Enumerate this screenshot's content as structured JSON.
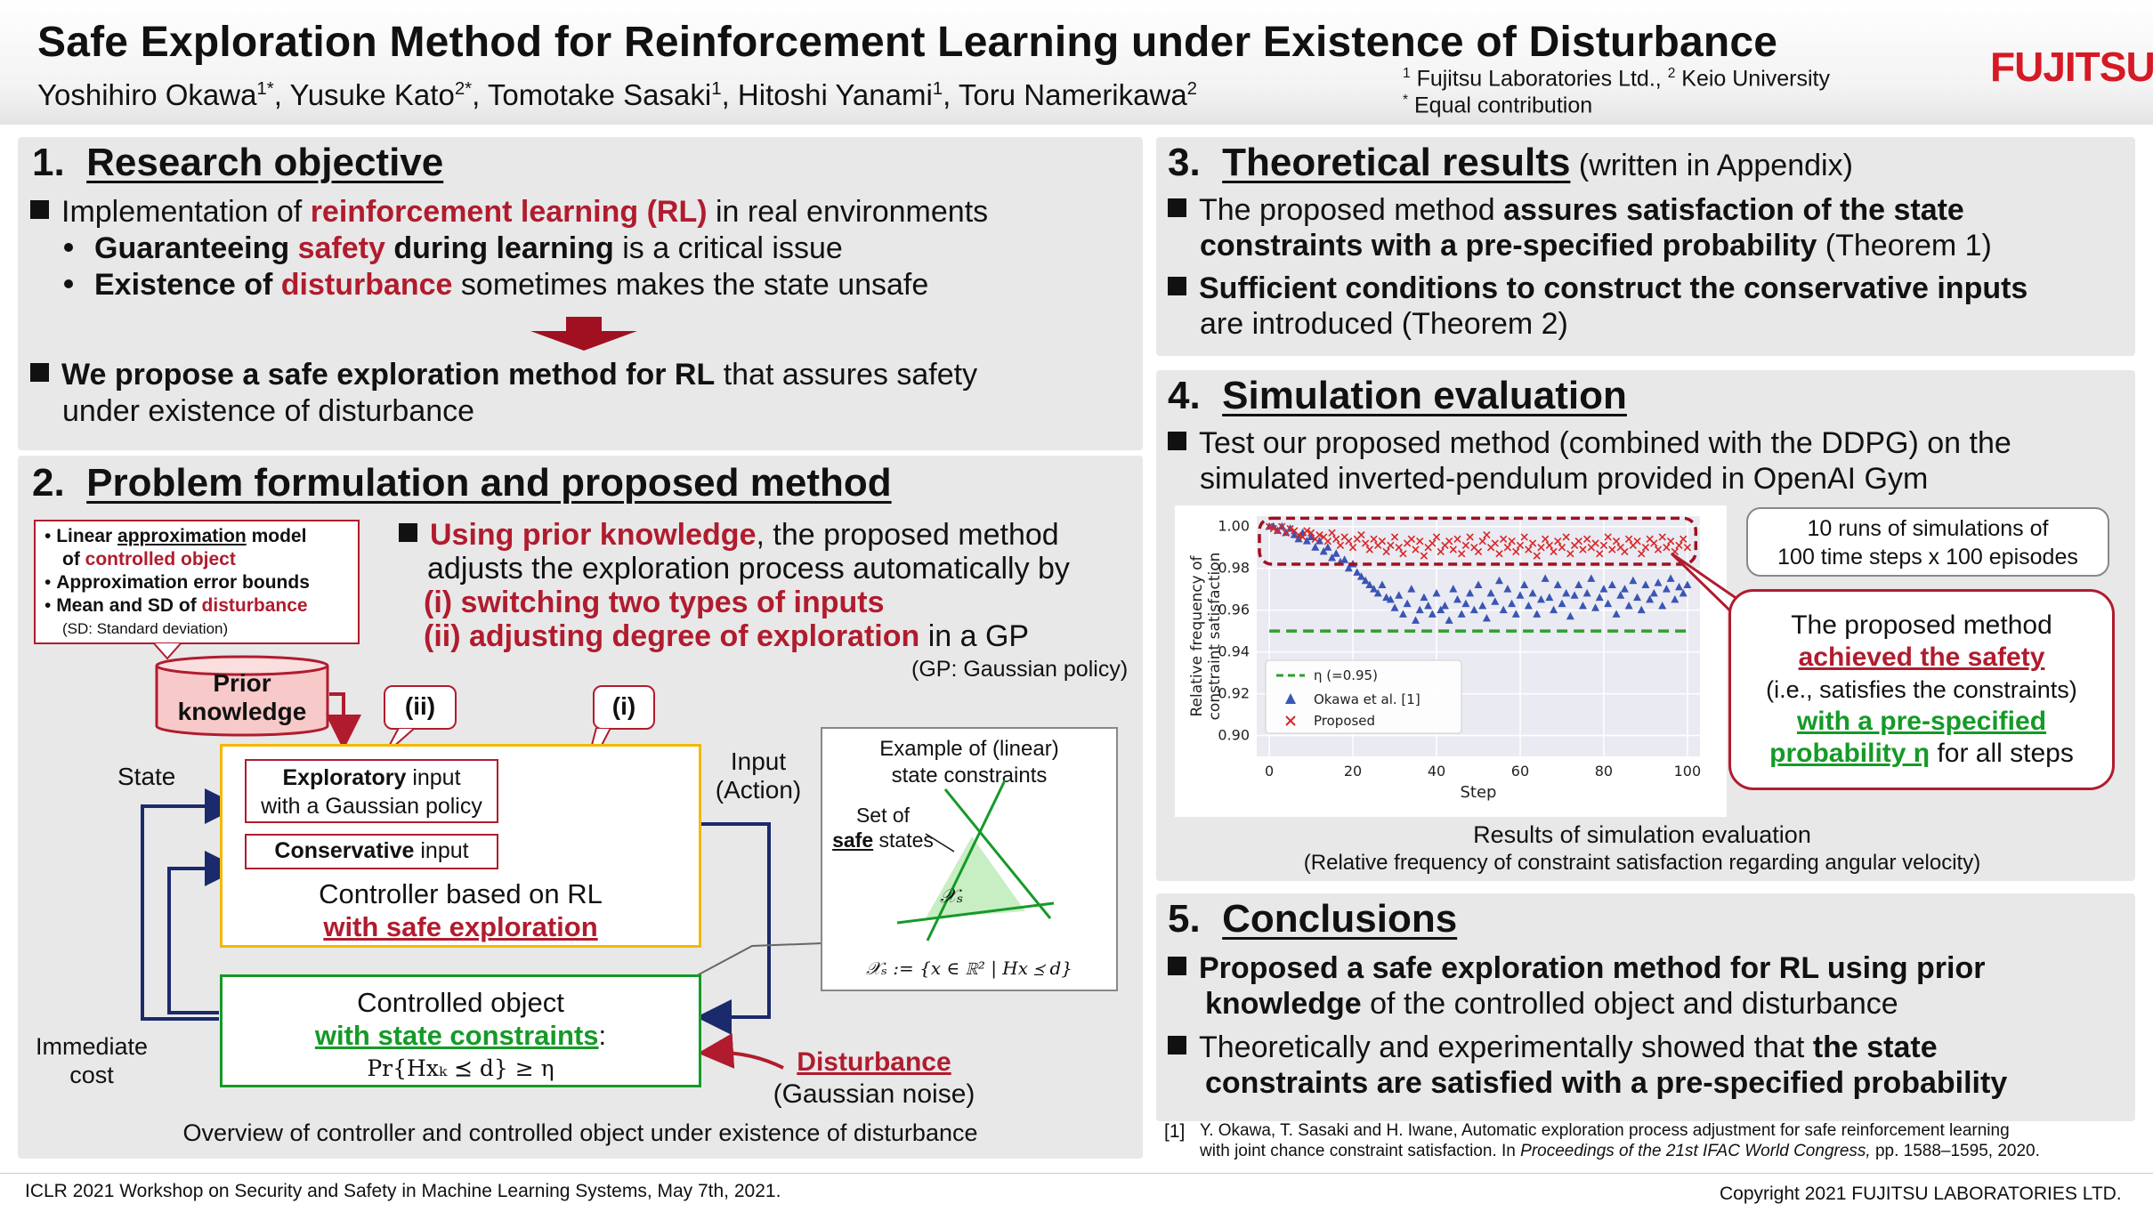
{
  "header": {
    "title": "Safe Exploration Method for Reinforcement Learning under Existence of Disturbance",
    "authors": [
      {
        "name": "Yoshihiro Okawa",
        "mark": "1*"
      },
      {
        "name": "Yusuke Kato",
        "mark": "2*"
      },
      {
        "name": "Tomotake Sasaki",
        "mark": "1"
      },
      {
        "name": "Hitoshi Yanami",
        "mark": "1"
      },
      {
        "name": "Toru Namerikawa",
        "mark": "2"
      }
    ],
    "affiliation_1": "Fujitsu Laboratories Ltd.,",
    "affiliation_2": "Keio University",
    "equal_note": "Equal contribution",
    "logo": "FUJITSU"
  },
  "s1": {
    "num": "1.",
    "title": "Research objective",
    "b1_pre": "Implementation of ",
    "b1_hl": "reinforcement learning (RL)",
    "b1_post": " in real environments",
    "sb1_a": "Guaranteeing ",
    "sb1_b": "safety",
    "sb1_c": " during learning",
    "sb1_d": " is a critical issue",
    "sb2_a": "Existence of ",
    "sb2_b": "disturbance",
    "sb2_c": " sometimes makes the state unsafe",
    "b2_bold": "We propose a safe exploration method for RL",
    "b2_rest": " that assures safety",
    "b2_line2": "under existence of disturbance"
  },
  "s2": {
    "num": "2.",
    "title": "Problem formulation and proposed method",
    "kb_line1_a": "Linear ",
    "kb_line1_b": "approximation",
    "kb_line1_c": " model",
    "kb_line2_a": "of ",
    "kb_line2_b": "controlled object",
    "kb_line3": "Approximation error bounds",
    "kb_line4_a": "Mean and SD of ",
    "kb_line4_b": "disturbance",
    "kb_note": "(SD: Standard deviation)",
    "prior_1": "Prior",
    "prior_2": "knowledge",
    "r_b1_hl": "Using prior knowledge",
    "r_b1_rest": ", the proposed method",
    "r_line2": "adjusts the exploration process automatically by",
    "r_i": "(i)  switching two types of inputs",
    "r_ii": "(ii) adjusting degree of exploration",
    "r_ii_post": " in a GP",
    "gp_note": "(GP: Gaussian policy)",
    "tag_ii": "(ii)",
    "tag_i": "(i)",
    "state": "State",
    "input_1": "Input",
    "input_2": "(Action)",
    "expl_bold": "Exploratory",
    "expl_rest": " input",
    "expl_line2": "with a Gaussian policy",
    "cons_bold": "Conservative",
    "cons_rest": " input",
    "ctrl_1": "Controller based on RL",
    "ctrl_2": "with safe exploration",
    "obj_1": "Controlled object",
    "obj_2": "with state constraints",
    "obj_colon": ":",
    "obj_formula": "Pr{Hxₖ ⪯ d} ≥ η",
    "imm_1": "Immediate",
    "imm_2": "cost",
    "dist_1": "Disturbance",
    "dist_2": "(Gaussian noise)",
    "ex_1": "Example of (linear)",
    "ex_2": "state constraints",
    "ex_set": "Set of",
    "ex_safe": "safe",
    "ex_states": " states",
    "ex_xs": "𝒳ₛ",
    "ex_def": "𝒳ₛ := {x ∈ ℝ² | Hx ⪯ d}",
    "caption": "Overview of controller and controlled object under existence of disturbance"
  },
  "s3": {
    "num": "3.",
    "title": "Theoretical results",
    "sub": " (written in Appendix)",
    "b1_a": "The proposed method ",
    "b1_b": "assures satisfaction of the state",
    "b1_c": "constraints with a pre-specified probability",
    "b1_d": " (Theorem 1)",
    "b2_a": "Sufficient conditions to construct the conservative inputs",
    "b2_b": "are introduced (Theorem 2)"
  },
  "s4": {
    "num": "4.",
    "title": "Simulation evaluation",
    "b1_l1": "Test our proposed method (combined with the DDPG) on the",
    "b1_l2": "simulated inverted-pendulum provided in OpenAI Gym",
    "note_1": "10 runs of simulations of",
    "note_2": "100 time steps x 100 episodes",
    "call_1": "The proposed method",
    "call_2": "achieved the safety",
    "call_3": "(i.e., satisfies the constraints)",
    "call_4": "with a pre-specified",
    "call_5a": "probability η",
    "call_5b": " for all steps",
    "cap_1": "Results of simulation evaluation",
    "cap_2": "(Relative frequency of constraint satisfaction regarding angular velocity)"
  },
  "s5": {
    "num": "5.",
    "title": "Conclusions",
    "b1_l1": "Proposed a safe exploration method for RL using prior",
    "b1_l2a": "knowledge",
    "b1_l2b": " of the controlled object and disturbance",
    "b2_l1a": "Theoretically and experimentally showed that ",
    "b2_l1b": "the state",
    "b2_l2": "constraints are satisfied with a pre-specified probability"
  },
  "reference": {
    "num": "[1]",
    "l1": "Y. Okawa, T. Sasaki and H. Iwane, Automatic exploration process adjustment for safe reinforcement learning",
    "l2a": "with joint chance constraint satisfaction. In ",
    "l2b": "Proceedings of the 21st IFAC World Congress,",
    "l2c": " pp. 1588–1595, 2020."
  },
  "footer": {
    "left": "ICLR 2021 Workshop on Security and Safety in Machine Learning Systems, May 7th, 2021.",
    "right": "Copyright 2021 FUJITSU LABORATORIES LTD."
  },
  "colors": {
    "accent_red": "#b01c2e",
    "accent_green": "#159a28",
    "navy": "#1b2a6b",
    "orange": "#f5b800"
  },
  "chart_data": {
    "type": "scatter",
    "xlabel": "Step",
    "ylabel": "Relative frequency of constraint satisfaction",
    "xlim": [
      -3,
      103
    ],
    "ylim": [
      0.89,
      1.005
    ],
    "xticks": [
      "0",
      "20",
      "40",
      "60",
      "80",
      "100"
    ],
    "yticks": [
      "0.90",
      "0.92",
      "0.94",
      "0.96",
      "0.98",
      "1.00"
    ],
    "legend_position": "bottom-left",
    "threshold": {
      "name": "η (=0.95)",
      "value": 0.95,
      "color": "#2ca02c"
    },
    "series": [
      {
        "name": "Okawa et al. [1]",
        "marker": "triangle",
        "color": "#3a55b4",
        "values": [
          1.0,
          1.0,
          0.998,
          1.0,
          0.997,
          0.999,
          0.996,
          0.994,
          0.997,
          0.993,
          0.995,
          0.99,
          0.993,
          0.988,
          0.99,
          0.985,
          0.987,
          0.983,
          0.984,
          0.98,
          0.982,
          0.978,
          0.976,
          0.974,
          0.972,
          0.97,
          0.968,
          0.972,
          0.966,
          0.965,
          0.961,
          0.967,
          0.958,
          0.963,
          0.97,
          0.955,
          0.96,
          0.966,
          0.962,
          0.958,
          0.968,
          0.96,
          0.962,
          0.955,
          0.97,
          0.965,
          0.958,
          0.963,
          0.968,
          0.96,
          0.972,
          0.962,
          0.956,
          0.968,
          0.964,
          0.974,
          0.96,
          0.97,
          0.963,
          0.958,
          0.967,
          0.972,
          0.962,
          0.968,
          0.958,
          0.965,
          0.975,
          0.966,
          0.96,
          0.972,
          0.963,
          0.968,
          0.957,
          0.967,
          0.972,
          0.962,
          0.968,
          0.975,
          0.961,
          0.966,
          0.97,
          0.963,
          0.972,
          0.958,
          0.967,
          0.97,
          0.962,
          0.974,
          0.966,
          0.96,
          0.972,
          0.965,
          0.968,
          0.973,
          0.962,
          0.97,
          0.975,
          0.965,
          0.971,
          0.968,
          0.972
        ]
      },
      {
        "name": "Proposed",
        "marker": "x",
        "color": "#d62728",
        "values": [
          1.0,
          0.999,
          0.998,
          1.0,
          0.997,
          0.999,
          0.998,
          0.996,
          0.995,
          0.998,
          0.997,
          0.994,
          0.996,
          0.995,
          0.993,
          0.997,
          0.994,
          0.991,
          0.995,
          0.993,
          0.99,
          0.994,
          0.996,
          0.992,
          0.989,
          0.994,
          0.991,
          0.993,
          0.988,
          0.991,
          0.995,
          0.99,
          0.987,
          0.992,
          0.994,
          0.989,
          0.993,
          0.986,
          0.99,
          0.992,
          0.995,
          0.988,
          0.991,
          0.993,
          0.989,
          0.994,
          0.987,
          0.991,
          0.995,
          0.99,
          0.988,
          0.993,
          0.996,
          0.99,
          0.992,
          0.987,
          0.994,
          0.99,
          0.993,
          0.988,
          0.991,
          0.995,
          0.989,
          0.992,
          0.986,
          0.99,
          0.994,
          0.991,
          0.988,
          0.993,
          0.99,
          0.995,
          0.987,
          0.991,
          0.993,
          0.989,
          0.994,
          0.99,
          0.992,
          0.987,
          0.991,
          0.995,
          0.989,
          0.993,
          0.99,
          0.988,
          0.994,
          0.991,
          0.993,
          0.987,
          0.99,
          0.994,
          0.992,
          0.989,
          0.995,
          0.99,
          0.993,
          0.988,
          0.991,
          0.994,
          0.99
        ]
      }
    ]
  }
}
